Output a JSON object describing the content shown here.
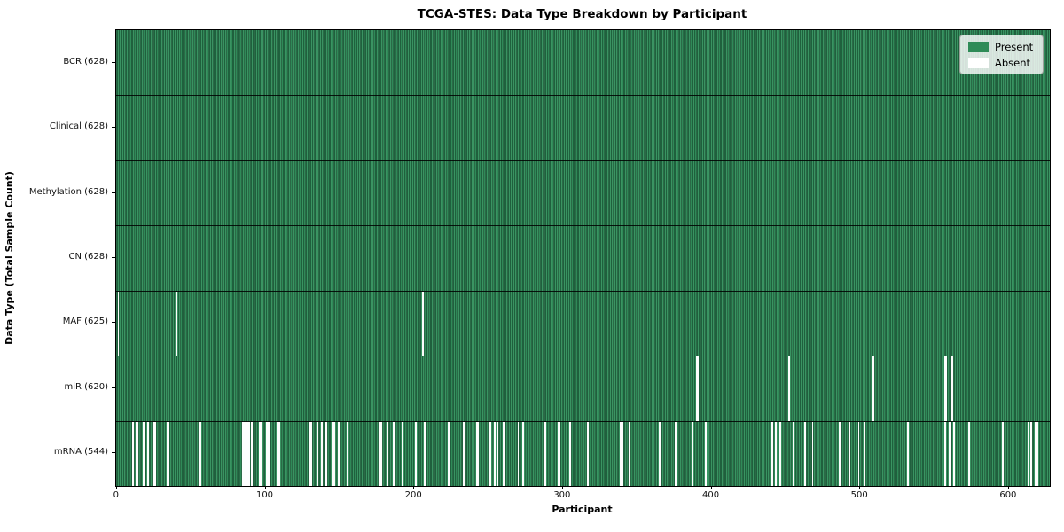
{
  "figure": {
    "title": "TCGA-STES: Data Type Breakdown by Participant"
  },
  "chart_data": {
    "type": "heatmap",
    "title": "TCGA-STES: Data Type Breakdown by Participant",
    "xlabel": "Participant",
    "ylabel": "Data Type (Total Sample Count)",
    "x_ticks": [
      0,
      100,
      200,
      300,
      400,
      500,
      600
    ],
    "xlim": [
      -0.5,
      627.5
    ],
    "n_participants": 628,
    "grid": false,
    "legend_position": "upper right",
    "legend": [
      {
        "label": "Present",
        "color": "#2e8b57"
      },
      {
        "label": "Absent",
        "color": "#ffffff"
      }
    ],
    "colors": {
      "present": "#2e8b57",
      "absent": "#ffffff",
      "bar_edge": "#0d2718",
      "legend_bg": "#e4e8e4",
      "legend_border": "#9aa09a"
    },
    "rows": [
      {
        "label": "BCR (628)",
        "data_type": "BCR",
        "total_samples": 628,
        "absent_participants": []
      },
      {
        "label": "Clinical (628)",
        "data_type": "Clinical",
        "total_samples": 628,
        "absent_participants": []
      },
      {
        "label": "Methylation (628)",
        "data_type": "Methylation",
        "total_samples": 628,
        "absent_participants": []
      },
      {
        "label": "CN (628)",
        "data_type": "CN",
        "total_samples": 628,
        "absent_participants": []
      },
      {
        "label": "MAF (625)",
        "data_type": "MAF",
        "total_samples": 625,
        "absent_participants": [
          1,
          40,
          206
        ]
      },
      {
        "label": "miR (620)",
        "data_type": "miR",
        "total_samples": 620,
        "absent_participants": [
          390,
          391,
          452,
          509,
          557,
          558,
          561,
          562
        ]
      },
      {
        "label": "mRNA (544)",
        "data_type": "mRNA",
        "total_samples": 544,
        "absent_participants": [
          11,
          13,
          14,
          18,
          21,
          25,
          26,
          29,
          34,
          35,
          56,
          85,
          86,
          88,
          89,
          91,
          96,
          97,
          101,
          102,
          108,
          109,
          130,
          131,
          135,
          138,
          140,
          141,
          145,
          146,
          149,
          150,
          155,
          177,
          178,
          182,
          186,
          187,
          192,
          201,
          207,
          223,
          233,
          234,
          242,
          243,
          251,
          254,
          256,
          260,
          270,
          273,
          288,
          297,
          298,
          305,
          317,
          339,
          340,
          345,
          365,
          376,
          387,
          396,
          441,
          443,
          446,
          455,
          463,
          468,
          486,
          493,
          499,
          503,
          532,
          557,
          560,
          563,
          573,
          596,
          613,
          615,
          618,
          619
        ]
      }
    ]
  }
}
